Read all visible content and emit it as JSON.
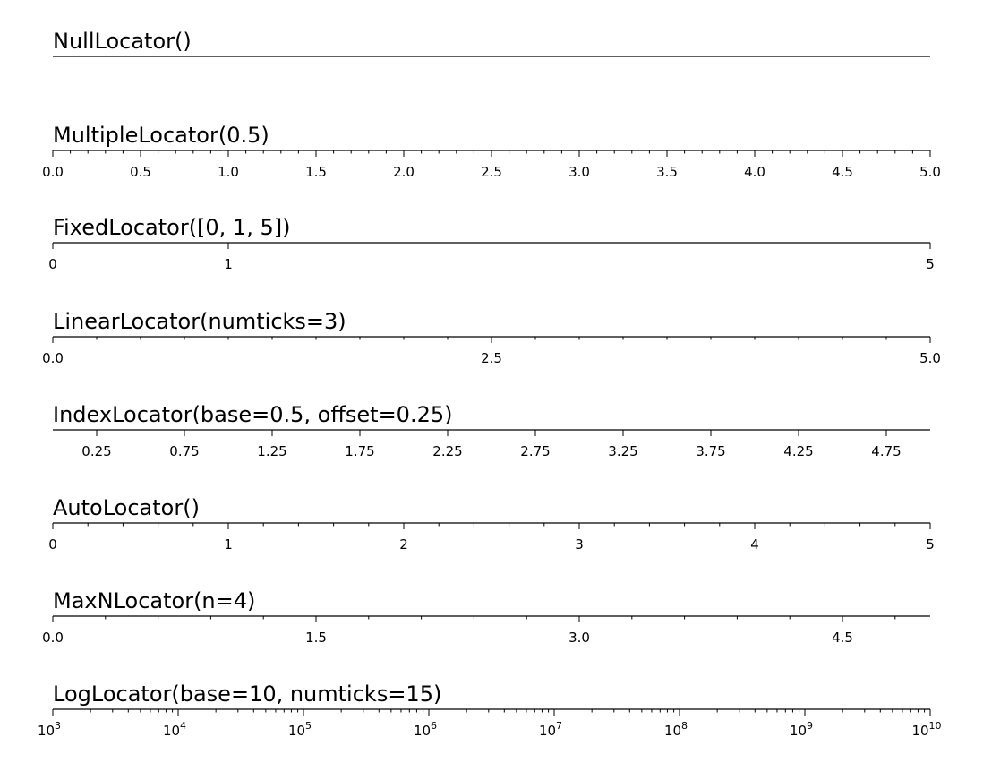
{
  "chart_data": [
    {
      "type": "axis",
      "title": "NullLocator()",
      "xlim": [
        0,
        5
      ],
      "major": [],
      "minor": [],
      "labels": []
    },
    {
      "type": "axis",
      "title": "MultipleLocator(0.5)",
      "xlim": [
        0,
        5
      ],
      "major": [
        0,
        0.5,
        1,
        1.5,
        2,
        2.5,
        3,
        3.5,
        4,
        4.5,
        5
      ],
      "minor": [
        0.1,
        0.2,
        0.3,
        0.4,
        0.6,
        0.7,
        0.8,
        0.9,
        1.1,
        1.2,
        1.3,
        1.4,
        1.6,
        1.7,
        1.8,
        1.9,
        2.1,
        2.2,
        2.3,
        2.4,
        2.6,
        2.7,
        2.8,
        2.9,
        3.1,
        3.2,
        3.3,
        3.4,
        3.6,
        3.7,
        3.8,
        3.9,
        4.1,
        4.2,
        4.3,
        4.4,
        4.6,
        4.7,
        4.8,
        4.9
      ],
      "labels": [
        "0.0",
        "0.5",
        "1.0",
        "1.5",
        "2.0",
        "2.5",
        "3.0",
        "3.5",
        "4.0",
        "4.5",
        "5.0"
      ]
    },
    {
      "type": "axis",
      "title": "FixedLocator([0, 1, 5])",
      "xlim": [
        0,
        5
      ],
      "major": [
        0,
        1,
        5
      ],
      "minor": [],
      "labels": [
        "0",
        "1",
        "5"
      ]
    },
    {
      "type": "axis",
      "title": "LinearLocator(numticks=3)",
      "xlim": [
        0,
        5
      ],
      "major": [
        0,
        2.5,
        5
      ],
      "minor": [
        0.25,
        0.5,
        0.75,
        1,
        1.25,
        1.5,
        1.75,
        2,
        2.25,
        2.75,
        3,
        3.25,
        3.5,
        3.75,
        4,
        4.25,
        4.5,
        4.75
      ],
      "labels": [
        "0.0",
        "2.5",
        "5.0"
      ]
    },
    {
      "type": "axis",
      "title": "IndexLocator(base=0.5, offset=0.25)",
      "xlim": [
        0,
        5
      ],
      "major": [
        0.25,
        0.75,
        1.25,
        1.75,
        2.25,
        2.75,
        3.25,
        3.75,
        4.25,
        4.75
      ],
      "minor": [],
      "labels": [
        "0.25",
        "0.75",
        "1.25",
        "1.75",
        "2.25",
        "2.75",
        "3.25",
        "3.75",
        "4.25",
        "4.75"
      ]
    },
    {
      "type": "axis",
      "title": "AutoLocator()",
      "xlim": [
        0,
        5
      ],
      "major": [
        0,
        1,
        2,
        3,
        4,
        5
      ],
      "minor": [
        0.2,
        0.4,
        0.6,
        0.8,
        1.2,
        1.4,
        1.6,
        1.8,
        2.2,
        2.4,
        2.6,
        2.8,
        3.2,
        3.4,
        3.6,
        3.8,
        4.2,
        4.4,
        4.6,
        4.8
      ],
      "labels": [
        "0",
        "1",
        "2",
        "3",
        "4",
        "5"
      ]
    },
    {
      "type": "axis",
      "title": "MaxNLocator(n=4)",
      "xlim": [
        0,
        5
      ],
      "major": [
        0,
        1.5,
        3,
        4.5
      ],
      "minor": [
        0.3,
        0.6,
        0.9,
        1.2,
        1.8,
        2.1,
        2.4,
        2.7,
        3.3,
        3.6,
        3.9,
        4.2,
        4.8
      ],
      "labels": [
        "0.0",
        "1.5",
        "3.0",
        "4.5"
      ]
    },
    {
      "type": "axis",
      "title": "LogLocator(base=10, numticks=15)",
      "xlim": [
        1000,
        10000000000
      ],
      "scale": "log",
      "major": [
        1000,
        10000,
        100000,
        1000000,
        10000000,
        100000000,
        1000000000,
        10000000000
      ],
      "minor_per_decade": [
        2,
        3,
        4,
        5,
        6,
        7,
        8,
        9
      ],
      "labels": [
        {
          "base": "10",
          "exp": "3"
        },
        {
          "base": "10",
          "exp": "4"
        },
        {
          "base": "10",
          "exp": "5"
        },
        {
          "base": "10",
          "exp": "6"
        },
        {
          "base": "10",
          "exp": "7"
        },
        {
          "base": "10",
          "exp": "8"
        },
        {
          "base": "10",
          "exp": "9"
        },
        {
          "base": "10",
          "exp": "10"
        }
      ]
    }
  ]
}
